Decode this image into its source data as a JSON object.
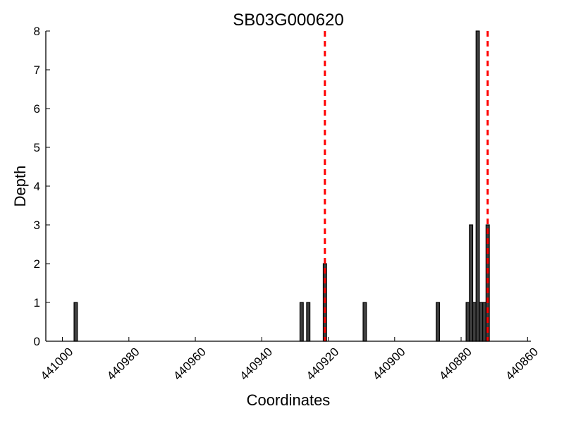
{
  "chart_data": {
    "type": "bar",
    "title": "SB03G000620",
    "xlabel": "Coordinates",
    "ylabel": "Depth",
    "x_reversed": true,
    "xlim": [
      441005,
      440859
    ],
    "ylim": [
      0,
      8
    ],
    "xticks": [
      441000,
      440980,
      440960,
      440940,
      440920,
      440900,
      440880,
      440860
    ],
    "yticks": [
      0,
      1,
      2,
      3,
      4,
      5,
      6,
      7,
      8
    ],
    "bar_color": "#404040",
    "bar_edge_color": "#000000",
    "bar_width": 1,
    "series": [
      {
        "x": [
          440996,
          440928,
          440926,
          440921,
          440909,
          440887,
          440878,
          440877,
          440876,
          440875,
          440874,
          440873,
          440872
        ],
        "values": [
          1,
          1,
          1,
          2,
          1,
          1,
          1,
          3,
          1,
          8,
          1,
          1,
          3
        ]
      }
    ],
    "vlines": [
      {
        "x": 440921,
        "color": "#ff0000",
        "style": "dashed"
      },
      {
        "x": 440872,
        "color": "#ff0000",
        "style": "dashed"
      }
    ],
    "grid": false,
    "legend": "none"
  }
}
